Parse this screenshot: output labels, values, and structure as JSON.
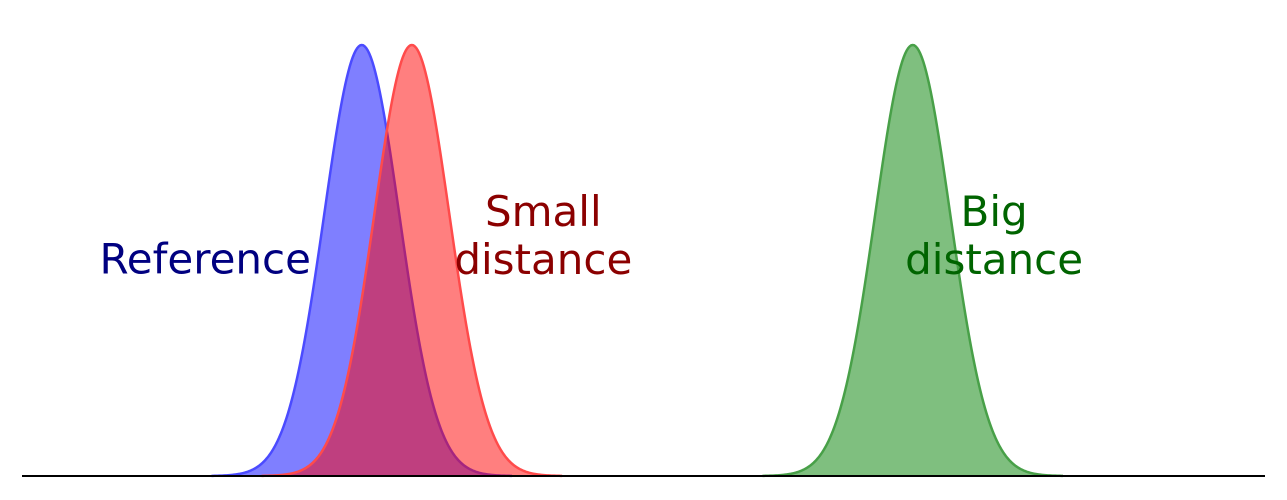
{
  "chart_data": {
    "type": "area",
    "title": "",
    "xlabel": "",
    "ylabel": "",
    "grid": false,
    "xlim": [
      -3.5,
      14.5
    ],
    "ylim": [
      0,
      1
    ],
    "series": [
      {
        "name": "Reference",
        "mean": 1.0,
        "sd": 0.6,
        "peak": 1.0,
        "fill_color": "#0000ff",
        "stroke_color": "#4b4bff",
        "label_color": "#000080",
        "label_lines": [
          "Reference"
        ],
        "label_x": -1.5,
        "label_y": 0.47
      },
      {
        "name": "Small distance",
        "mean": 1.8,
        "sd": 0.6,
        "peak": 1.0,
        "fill_color": "#ff0000",
        "stroke_color": "#ff4b4b",
        "label_color": "#8b0000",
        "label_lines": [
          "Small",
          "distance"
        ],
        "label_x": 3.9,
        "label_y": 0.58
      },
      {
        "name": "Big distance",
        "mean": 9.8,
        "sd": 0.6,
        "peak": 1.0,
        "fill_color": "#008000",
        "stroke_color": "#48a048",
        "label_color": "#006400",
        "label_lines": [
          "Big",
          "distance"
        ],
        "label_x": 11.1,
        "label_y": 0.58
      }
    ]
  }
}
